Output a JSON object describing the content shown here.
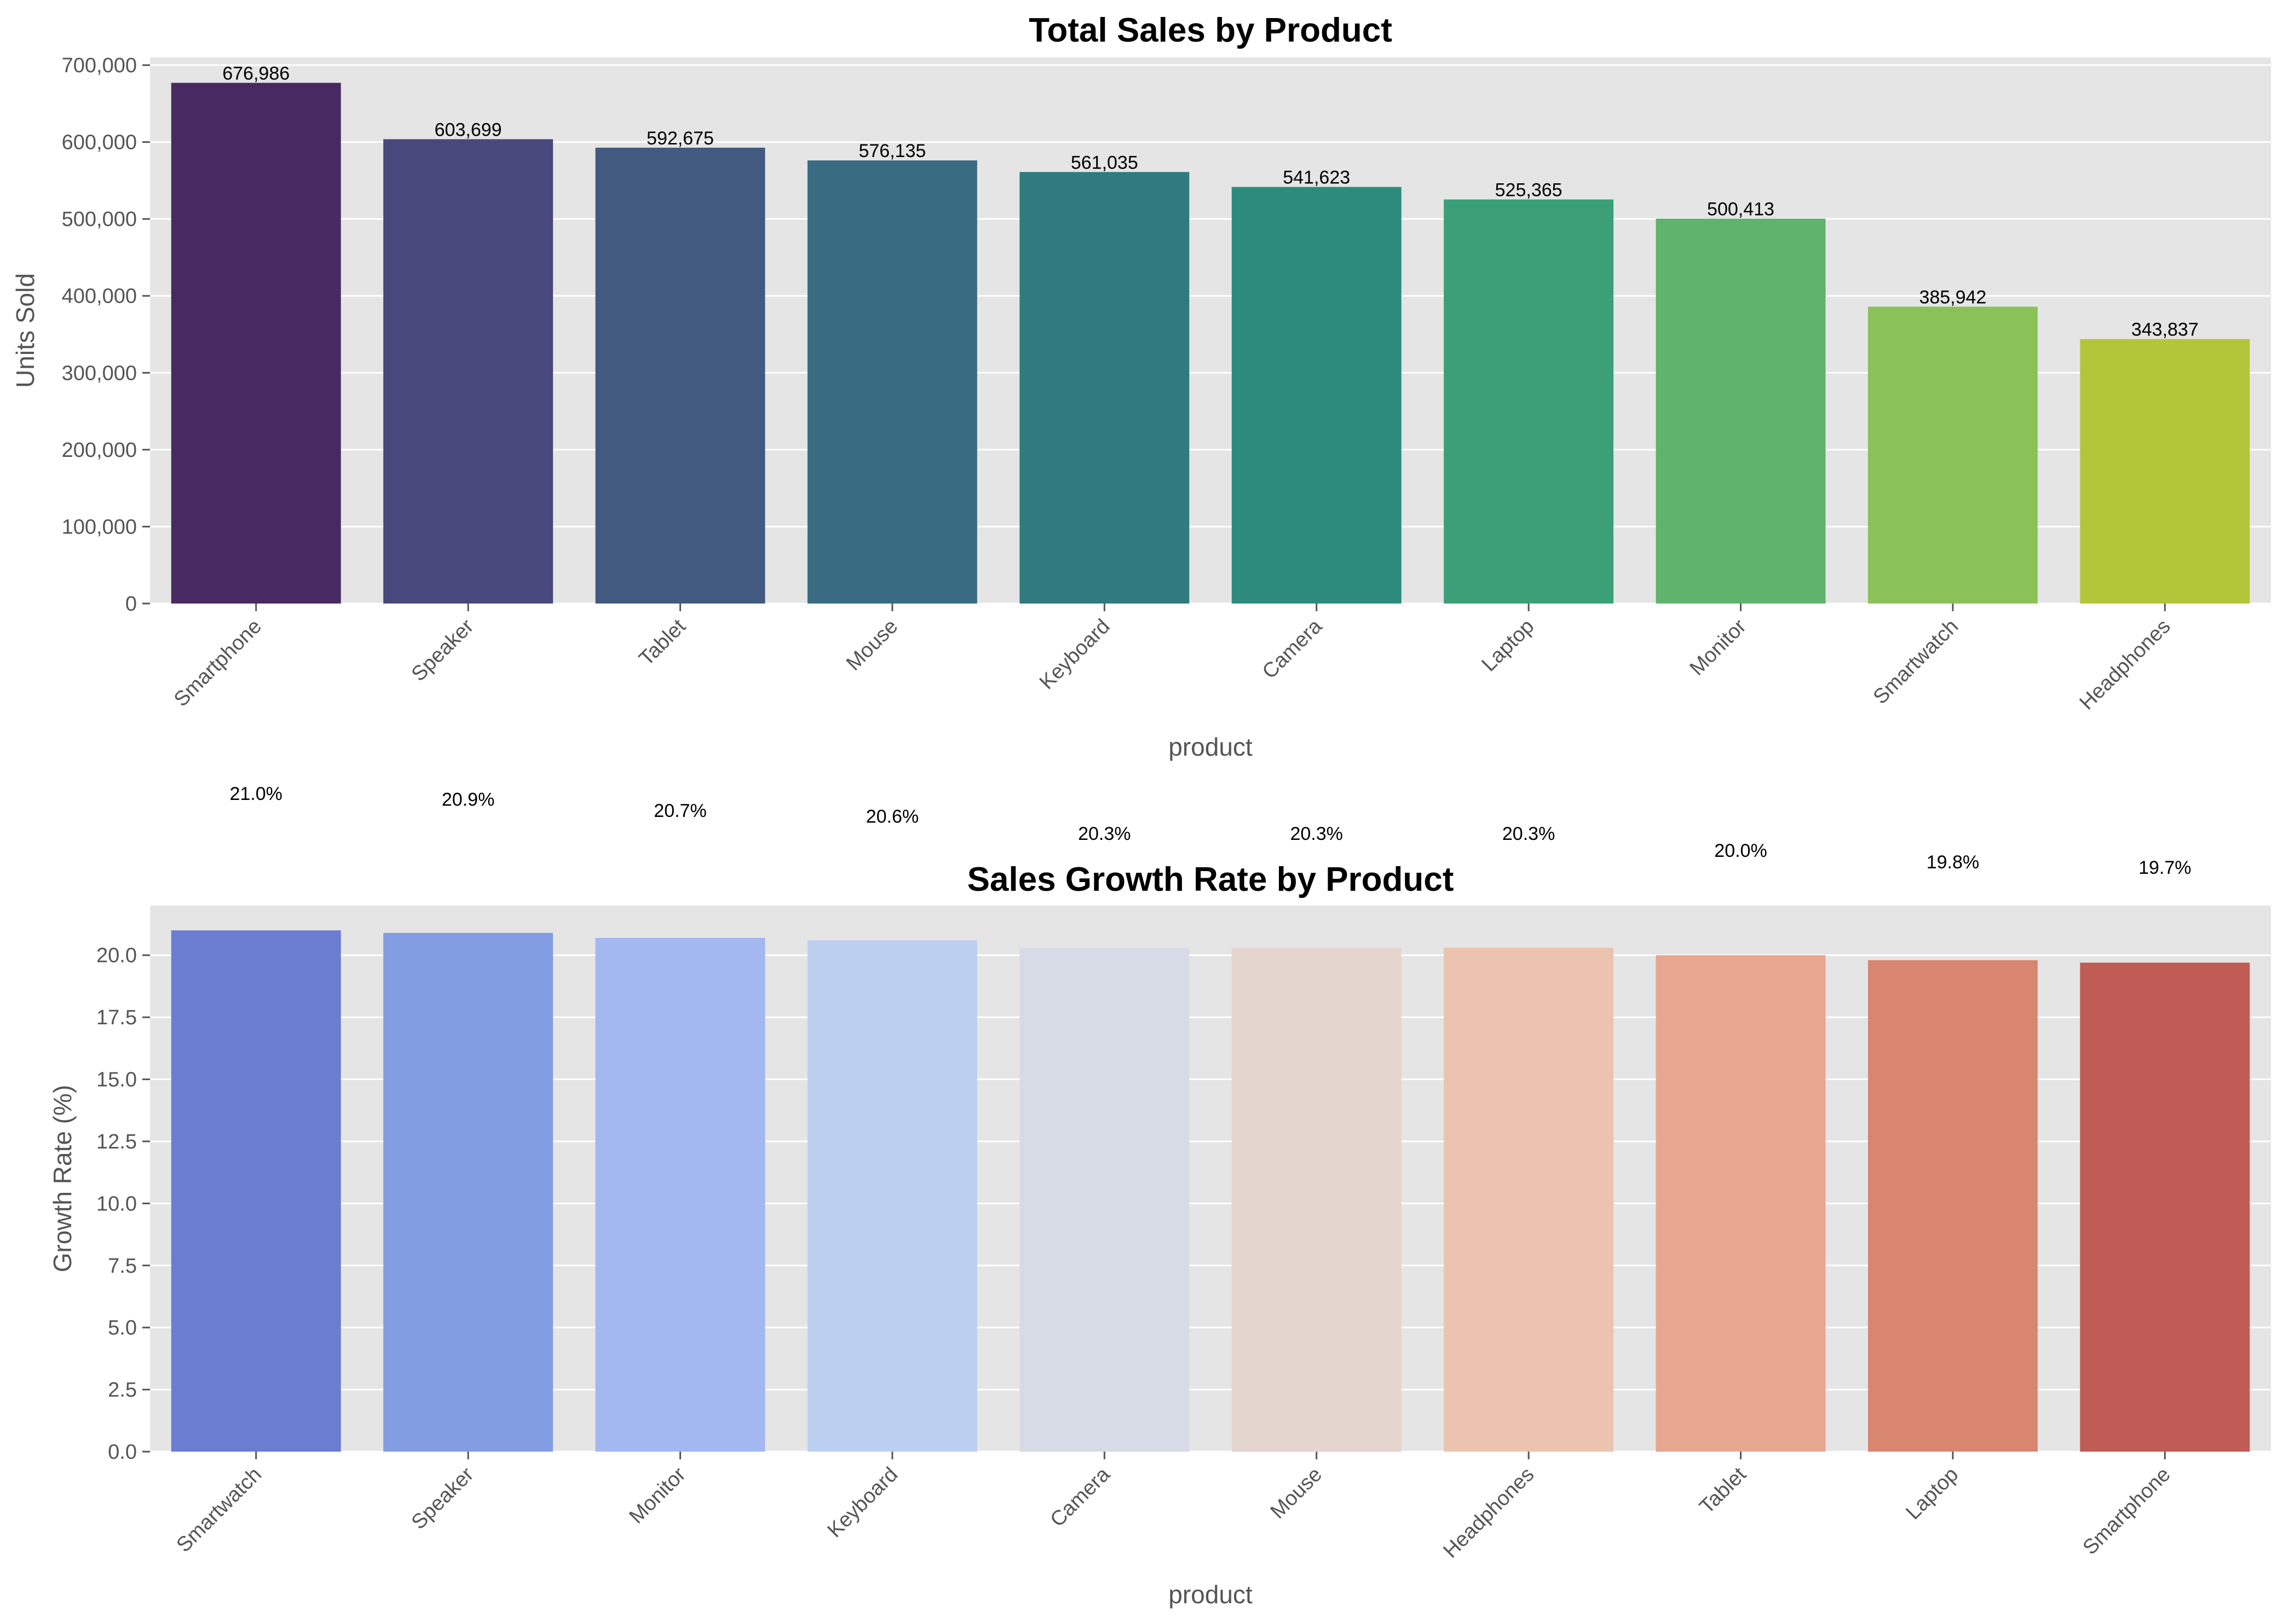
{
  "chart_data": [
    {
      "type": "bar",
      "title": "Total Sales by Product",
      "xlabel": "product",
      "ylabel": "Units Sold",
      "categories": [
        "Smartphone",
        "Speaker",
        "Tablet",
        "Mouse",
        "Keyboard",
        "Camera",
        "Laptop",
        "Monitor",
        "Smartwatch",
        "Headphones"
      ],
      "values": [
        676986,
        603699,
        592675,
        576135,
        561035,
        541623,
        525365,
        500413,
        385942,
        343837
      ],
      "value_labels": [
        "676,986",
        "603,699",
        "592,675",
        "576,135",
        "561,035",
        "541,623",
        "525,365",
        "500,413",
        "385,942",
        "343,837"
      ],
      "ylim": [
        0,
        710000
      ],
      "yticks": [
        0,
        100000,
        200000,
        300000,
        400000,
        500000,
        600000,
        700000
      ],
      "ytick_labels": [
        "0",
        "100,000",
        "200,000",
        "300,000",
        "400,000",
        "500,000",
        "600,000",
        "700,000"
      ],
      "colors": [
        "#482a62",
        "#48487c",
        "#425a7f",
        "#396c82",
        "#2f7b80",
        "#2d8b7e",
        "#3ba077",
        "#5fb36c",
        "#8bc258",
        "#b1c739"
      ],
      "grid": true
    },
    {
      "type": "bar",
      "title": "Sales Growth Rate by Product",
      "xlabel": "product",
      "ylabel": "Growth Rate (%)",
      "categories": [
        "Smartwatch",
        "Speaker",
        "Monitor",
        "Keyboard",
        "Camera",
        "Mouse",
        "Headphones",
        "Tablet",
        "Laptop",
        "Smartphone"
      ],
      "values": [
        21.0,
        20.9,
        20.7,
        20.6,
        20.3,
        20.3,
        20.3,
        20.0,
        19.8,
        19.7
      ],
      "value_labels": [
        "21.0%",
        "20.9%",
        "20.7%",
        "20.6%",
        "20.3%",
        "20.3%",
        "20.3%",
        "20.0%",
        "19.8%",
        "19.7%"
      ],
      "ylim": [
        0,
        22
      ],
      "yticks": [
        0,
        2.5,
        5,
        7.5,
        10,
        12.5,
        15,
        17.5,
        20
      ],
      "ytick_labels": [
        "0.0",
        "2.5",
        "5.0",
        "7.5",
        "10.0",
        "12.5",
        "15.0",
        "17.5",
        "20.0"
      ],
      "colors": [
        "#6a7dd1",
        "#839de3",
        "#a3b8f1",
        "#bccff0",
        "#d6dbe5",
        "#e4d6cf",
        "#ebc3ae",
        "#e6a68f",
        "#d88670",
        "#c05c55"
      ],
      "grid": true
    }
  ]
}
